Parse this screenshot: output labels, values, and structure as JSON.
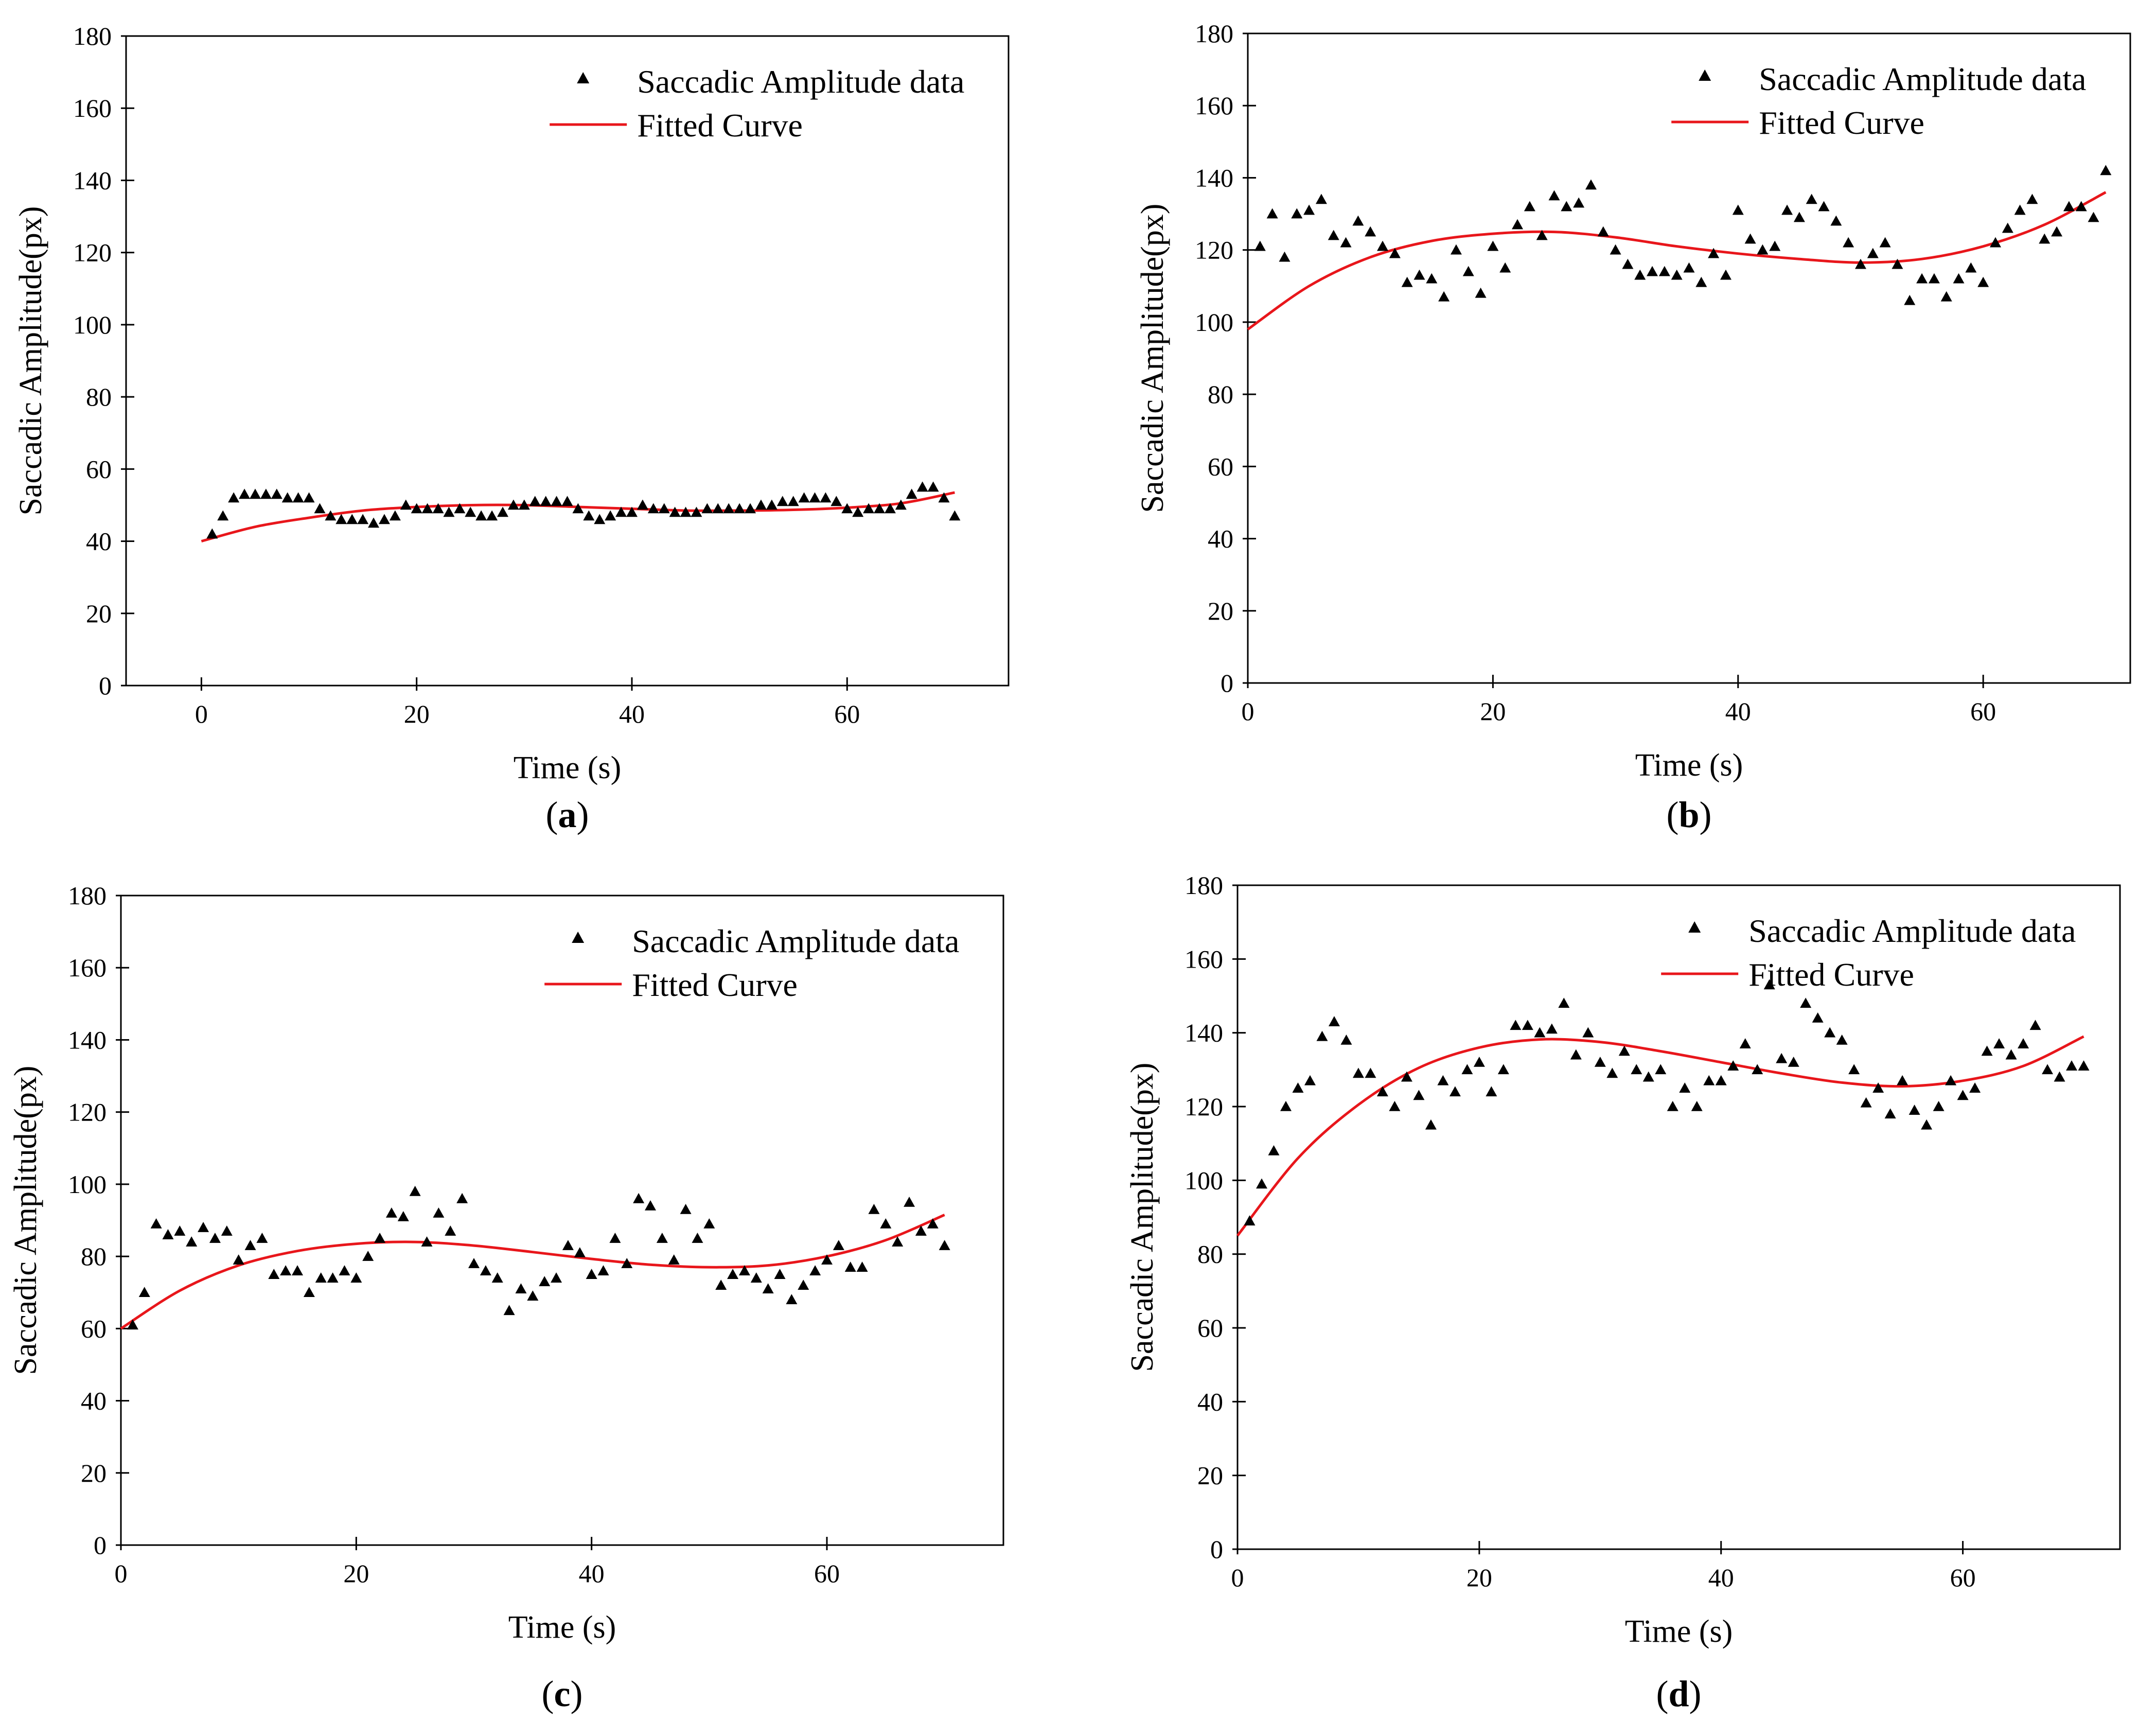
{
  "figure": {
    "panels": [
      "a",
      "b",
      "c",
      "d"
    ]
  },
  "chart_data": [
    {
      "id": "a",
      "label": "a",
      "type": "scatter",
      "xlabel": "Time (s)",
      "ylabel": "Saccadic Amplitude(px)",
      "xlim": [
        -7,
        75
      ],
      "ylim": [
        0,
        180
      ],
      "xticks": [
        0,
        20,
        40,
        60
      ],
      "yticks": [
        0,
        20,
        40,
        60,
        80,
        100,
        120,
        140,
        160,
        180
      ],
      "legend": {
        "position": "top-right",
        "data_label": "Saccadic Amplitude data",
        "fit_label": "Fitted Curve"
      },
      "colors": {
        "data": "#000000",
        "fit": "#e8161b"
      },
      "series": [
        {
          "name": "Saccadic Amplitude data",
          "kind": "scatter",
          "x": [
            1,
            2,
            3,
            4,
            5,
            6,
            7,
            8,
            9,
            10,
            11,
            12,
            13,
            14,
            15,
            16,
            17,
            18,
            19,
            20,
            21,
            22,
            23,
            24,
            25,
            26,
            27,
            28,
            29,
            30,
            31,
            32,
            33,
            34,
            35,
            36,
            37,
            38,
            39,
            40,
            41,
            42,
            43,
            44,
            45,
            46,
            47,
            48,
            49,
            50,
            51,
            52,
            53,
            54,
            55,
            56,
            57,
            58,
            59,
            60,
            61,
            62,
            63,
            64,
            65,
            66,
            67,
            68,
            69,
            70
          ],
          "y": [
            42,
            47,
            52,
            53,
            53,
            53,
            53,
            52,
            52,
            52,
            49,
            47,
            46,
            46,
            46,
            45,
            46,
            47,
            50,
            49,
            49,
            49,
            48,
            49,
            48,
            47,
            47,
            48,
            50,
            50,
            51,
            51,
            51,
            51,
            49,
            47,
            46,
            47,
            48,
            48,
            50,
            49,
            49,
            48,
            48,
            48,
            49,
            49,
            49,
            49,
            49,
            50,
            50,
            51,
            51,
            52,
            52,
            52,
            51,
            49,
            48,
            49,
            49,
            49,
            50,
            53,
            55,
            55,
            52,
            47
          ]
        },
        {
          "name": "Fitted Curve",
          "kind": "line",
          "x": [
            0,
            5,
            10,
            15,
            20,
            25,
            30,
            35,
            40,
            45,
            50,
            55,
            60,
            65,
            70
          ],
          "y": [
            40,
            44,
            46.5,
            48.5,
            49.5,
            50,
            50,
            49.5,
            49,
            48.5,
            48.5,
            48.7,
            49.3,
            50.5,
            53.5
          ]
        }
      ]
    },
    {
      "id": "b",
      "label": "b",
      "type": "scatter",
      "xlabel": "Time (s)",
      "ylabel": "Saccadic Amplitude(px)",
      "xlim": [
        0,
        72
      ],
      "ylim": [
        0,
        180
      ],
      "xticks": [
        0,
        20,
        40,
        60
      ],
      "yticks": [
        0,
        20,
        40,
        60,
        80,
        100,
        120,
        140,
        160,
        180
      ],
      "legend": {
        "position": "top-right",
        "data_label": "Saccadic Amplitude data",
        "fit_label": "Fitted Curve"
      },
      "colors": {
        "data": "#000000",
        "fit": "#e8161b"
      },
      "series": [
        {
          "name": "Saccadic Amplitude data",
          "kind": "scatter",
          "x": [
            1,
            2,
            3,
            4,
            5,
            6,
            7,
            8,
            9,
            10,
            11,
            12,
            13,
            14,
            15,
            16,
            17,
            18,
            19,
            20,
            21,
            22,
            23,
            24,
            25,
            26,
            27,
            28,
            29,
            30,
            31,
            32,
            33,
            34,
            35,
            36,
            37,
            38,
            39,
            40,
            41,
            42,
            43,
            44,
            45,
            46,
            47,
            48,
            49,
            50,
            51,
            52,
            53,
            54,
            55,
            56,
            57,
            58,
            59,
            60,
            61,
            62,
            63,
            64,
            65,
            66,
            67,
            68,
            69,
            70
          ],
          "y": [
            121,
            130,
            118,
            130,
            131,
            134,
            124,
            122,
            128,
            125,
            121,
            119,
            111,
            113,
            112,
            107,
            120,
            114,
            108,
            121,
            115,
            127,
            132,
            124,
            135,
            132,
            133,
            138,
            125,
            120,
            116,
            113,
            114,
            114,
            113,
            115,
            111,
            119,
            113,
            131,
            123,
            120,
            121,
            131,
            129,
            134,
            132,
            128,
            122,
            116,
            119,
            122,
            116,
            106,
            112,
            112,
            107,
            112,
            115,
            111,
            122,
            126,
            131,
            134,
            123,
            125,
            132,
            132,
            129,
            142
          ]
        },
        {
          "name": "Fitted Curve",
          "kind": "line",
          "x": [
            0,
            5,
            10,
            15,
            20,
            25,
            30,
            35,
            40,
            45,
            50,
            55,
            60,
            65,
            70
          ],
          "y": [
            98,
            110,
            118,
            122.5,
            124.5,
            125,
            123.5,
            121,
            119,
            117.5,
            116.5,
            117.5,
            121,
            127,
            136
          ]
        }
      ]
    },
    {
      "id": "c",
      "label": "c",
      "type": "scatter",
      "xlabel": "Time (s)",
      "ylabel": "Saccadic Amplitude(px)",
      "xlim": [
        0,
        75
      ],
      "ylim": [
        0,
        180
      ],
      "xticks": [
        0,
        20,
        40,
        60
      ],
      "yticks": [
        0,
        20,
        40,
        60,
        80,
        100,
        120,
        140,
        160,
        180
      ],
      "legend": {
        "position": "top-right",
        "data_label": "Saccadic Amplitude data",
        "fit_label": "Fitted Curve"
      },
      "colors": {
        "data": "#000000",
        "fit": "#e8161b"
      },
      "series": [
        {
          "name": "Saccadic Amplitude data",
          "kind": "scatter",
          "x": [
            1,
            2,
            3,
            4,
            5,
            6,
            7,
            8,
            9,
            10,
            11,
            12,
            13,
            14,
            15,
            16,
            17,
            18,
            19,
            20,
            21,
            22,
            23,
            24,
            25,
            26,
            27,
            28,
            29,
            30,
            31,
            32,
            33,
            34,
            35,
            36,
            37,
            38,
            39,
            40,
            41,
            42,
            43,
            44,
            45,
            46,
            47,
            48,
            49,
            50,
            51,
            52,
            53,
            54,
            55,
            56,
            57,
            58,
            59,
            60,
            61,
            62,
            63,
            64,
            65,
            66,
            67,
            68,
            69,
            70
          ],
          "y": [
            61,
            70,
            89,
            86,
            87,
            84,
            88,
            85,
            87,
            79,
            83,
            85,
            75,
            76,
            76,
            70,
            74,
            74,
            76,
            74,
            80,
            85,
            92,
            91,
            98,
            84,
            92,
            87,
            96,
            78,
            76,
            74,
            65,
            71,
            69,
            73,
            74,
            83,
            81,
            75,
            76,
            85,
            78,
            96,
            94,
            85,
            79,
            93,
            85,
            89,
            72,
            75,
            76,
            74,
            71,
            75,
            68,
            72,
            76,
            79,
            83,
            77,
            77,
            93,
            89,
            84,
            95,
            87,
            89,
            83
          ]
        },
        {
          "name": "Fitted Curve",
          "kind": "line",
          "x": [
            0,
            5,
            10,
            15,
            20,
            25,
            30,
            35,
            40,
            45,
            50,
            55,
            60,
            65,
            70
          ],
          "y": [
            60,
            70.5,
            77.5,
            81.5,
            83.5,
            84,
            83,
            81.2,
            79.3,
            77.7,
            77,
            77.5,
            80,
            84.5,
            91.5
          ]
        }
      ]
    },
    {
      "id": "d",
      "label": "d",
      "type": "scatter",
      "xlabel": "Time (s)",
      "ylabel": "Saccadic Amplitude(px)",
      "xlim": [
        0,
        73
      ],
      "ylim": [
        0,
        180
      ],
      "xticks": [
        0,
        20,
        40,
        60
      ],
      "yticks": [
        0,
        20,
        40,
        60,
        80,
        100,
        120,
        140,
        160,
        180
      ],
      "legend": {
        "position": "top-right",
        "data_label": "Saccadic Amplitude data",
        "fit_label": "Fitted Curve"
      },
      "colors": {
        "data": "#000000",
        "fit": "#e8161b"
      },
      "series": [
        {
          "name": "Saccadic Amplitude data",
          "kind": "scatter",
          "x": [
            1,
            2,
            3,
            4,
            5,
            6,
            7,
            8,
            9,
            10,
            11,
            12,
            13,
            14,
            15,
            16,
            17,
            18,
            19,
            20,
            21,
            22,
            23,
            24,
            25,
            26,
            27,
            28,
            29,
            30,
            31,
            32,
            33,
            34,
            35,
            36,
            37,
            38,
            39,
            40,
            41,
            42,
            43,
            44,
            45,
            46,
            47,
            48,
            49,
            50,
            51,
            52,
            53,
            54,
            55,
            56,
            57,
            58,
            59,
            60,
            61,
            62,
            63,
            64,
            65,
            66,
            67,
            68,
            69,
            70
          ],
          "y": [
            89,
            99,
            108,
            120,
            125,
            127,
            139,
            143,
            138,
            129,
            129,
            124,
            120,
            128,
            123,
            115,
            127,
            124,
            130,
            132,
            124,
            130,
            142,
            142,
            140,
            141,
            148,
            134,
            140,
            132,
            129,
            135,
            130,
            128,
            130,
            120,
            125,
            120,
            127,
            127,
            131,
            137,
            130,
            153,
            133,
            132,
            148,
            144,
            140,
            138,
            130,
            121,
            125,
            118,
            127,
            119,
            115,
            120,
            127,
            123,
            125,
            135,
            137,
            134,
            137,
            142,
            130,
            128,
            131,
            131
          ]
        },
        {
          "name": "Fitted Curve",
          "kind": "line",
          "x": [
            0,
            5,
            10,
            15,
            20,
            25,
            30,
            35,
            40,
            45,
            50,
            55,
            60,
            65,
            70
          ],
          "y": [
            85,
            106,
            120.5,
            130.5,
            136,
            138.2,
            137.5,
            135,
            132,
            129,
            126.5,
            125.5,
            127,
            131,
            139
          ]
        }
      ]
    }
  ]
}
